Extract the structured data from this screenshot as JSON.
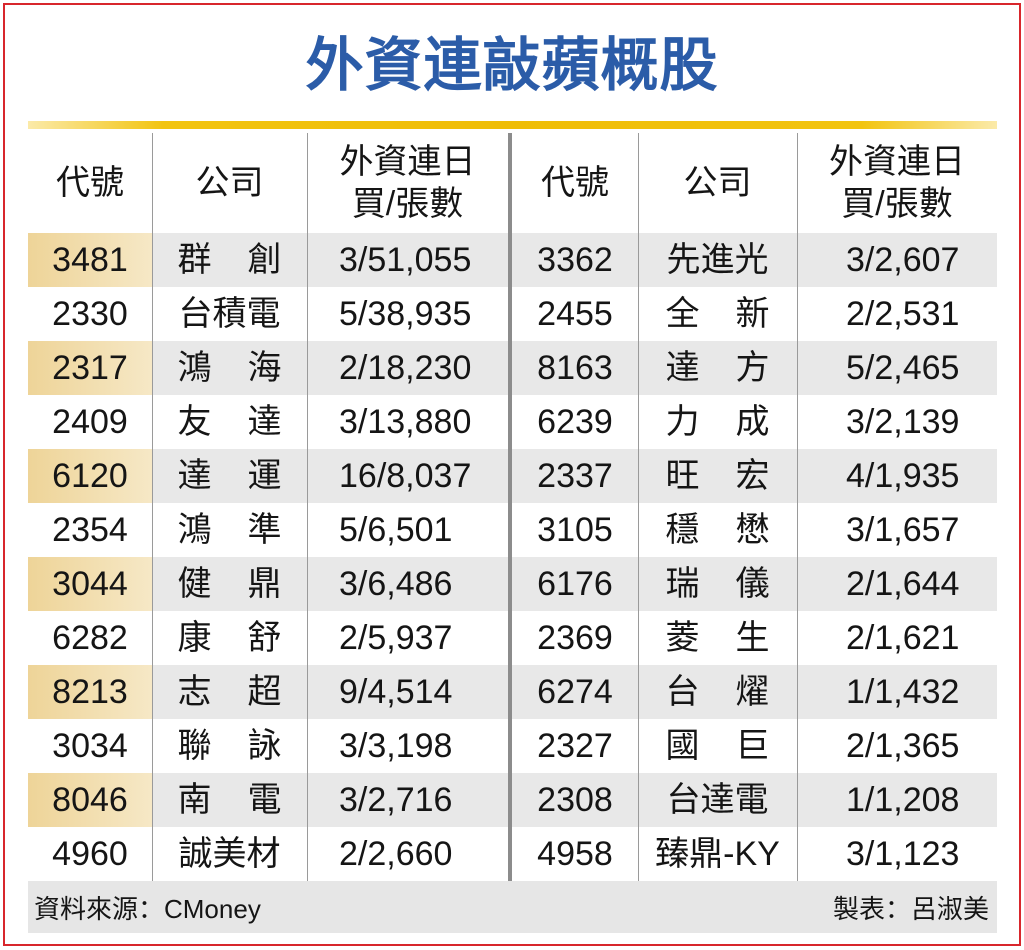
{
  "colors": {
    "title": "#2b5ca8",
    "accent_rule": "#efbd06",
    "border": "#d8262c",
    "row_shade": "#e8e8e8",
    "code_shade": "#eed498"
  },
  "chart_data": {
    "type": "table",
    "title": "外資連敲蘋概股",
    "header": {
      "code": "代號",
      "company": "公司",
      "buy_line1": "外資連日",
      "buy_line2": "買/張數"
    },
    "left": [
      {
        "code": "3481",
        "company": "群創",
        "buy": "3/51,055"
      },
      {
        "code": "2330",
        "company": "台積電",
        "buy": "5/38,935"
      },
      {
        "code": "2317",
        "company": "鴻海",
        "buy": "2/18,230"
      },
      {
        "code": "2409",
        "company": "友達",
        "buy": "3/13,880"
      },
      {
        "code": "6120",
        "company": "達運",
        "buy": "16/8,037"
      },
      {
        "code": "2354",
        "company": "鴻準",
        "buy": "5/6,501"
      },
      {
        "code": "3044",
        "company": "健鼎",
        "buy": "3/6,486"
      },
      {
        "code": "6282",
        "company": "康舒",
        "buy": "2/5,937"
      },
      {
        "code": "8213",
        "company": "志超",
        "buy": "9/4,514"
      },
      {
        "code": "3034",
        "company": "聯詠",
        "buy": "3/3,198"
      },
      {
        "code": "8046",
        "company": "南電",
        "buy": "3/2,716"
      },
      {
        "code": "4960",
        "company": "誠美材",
        "buy": "2/2,660"
      }
    ],
    "right": [
      {
        "code": "3362",
        "company": "先進光",
        "buy": "3/2,607"
      },
      {
        "code": "2455",
        "company": "全新",
        "buy": "2/2,531"
      },
      {
        "code": "8163",
        "company": "達方",
        "buy": "5/2,465"
      },
      {
        "code": "6239",
        "company": "力成",
        "buy": "3/2,139"
      },
      {
        "code": "2337",
        "company": "旺宏",
        "buy": "4/1,935"
      },
      {
        "code": "3105",
        "company": "穩懋",
        "buy": "3/1,657"
      },
      {
        "code": "6176",
        "company": "瑞儀",
        "buy": "2/1,644"
      },
      {
        "code": "2369",
        "company": "菱生",
        "buy": "2/1,621"
      },
      {
        "code": "6274",
        "company": "台燿",
        "buy": "1/1,432"
      },
      {
        "code": "2327",
        "company": "國巨",
        "buy": "2/1,365"
      },
      {
        "code": "2308",
        "company": "台達電",
        "buy": "1/1,208"
      },
      {
        "code": "4958",
        "company": "臻鼎-KY",
        "buy": "3/1,123"
      }
    ]
  },
  "footer": {
    "source": "資料來源：CMoney",
    "credit": "製表：呂淑美"
  }
}
